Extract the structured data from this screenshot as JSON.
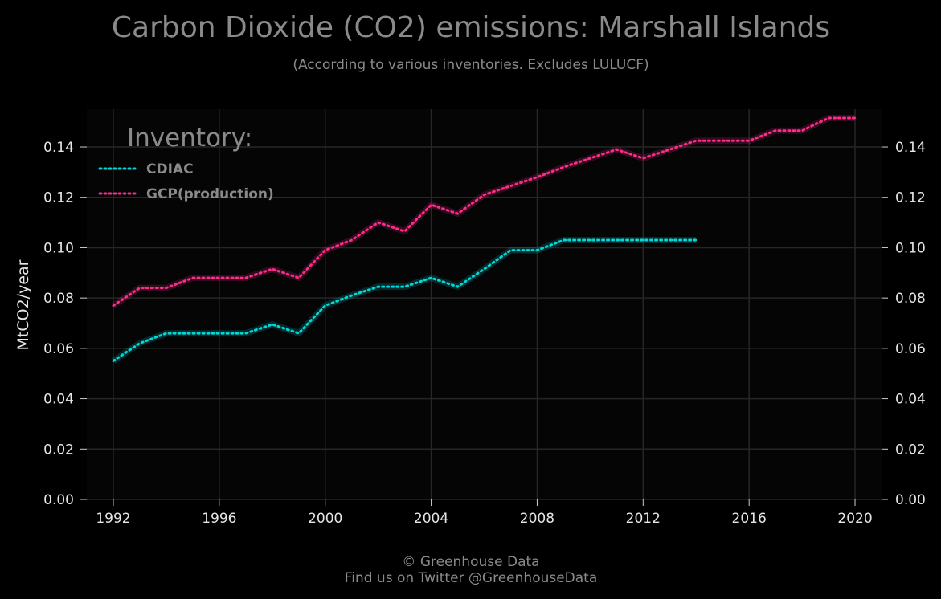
{
  "chart_data": {
    "type": "line",
    "title": "Carbon Dioxide (CO2) emissions: Marshall Islands",
    "subtitle": "(According to various inventories. Excludes LULUCF)",
    "ylabel": "MtCO2/year",
    "xlabel": "",
    "xlim": [
      1991,
      2021
    ],
    "ylim": [
      0,
      0.155
    ],
    "x_ticks": [
      "1992",
      "1996",
      "2000",
      "2004",
      "2008",
      "2012",
      "2016",
      "2020"
    ],
    "y_ticks": [
      "0.00",
      "0.02",
      "0.04",
      "0.06",
      "0.08",
      "0.10",
      "0.12",
      "0.14"
    ],
    "grid": true,
    "legend_title": "Inventory:",
    "legend_position": "top-left",
    "series": [
      {
        "name": "CDIAC",
        "color": "#00d8d8",
        "x": [
          1992,
          1993,
          1994,
          1995,
          1996,
          1997,
          1998,
          1999,
          2000,
          2001,
          2002,
          2003,
          2004,
          2005,
          2006,
          2007,
          2008,
          2009,
          2010,
          2011,
          2012,
          2013,
          2014
        ],
        "values": [
          0.055,
          0.062,
          0.066,
          0.066,
          0.066,
          0.066,
          0.0695,
          0.066,
          0.077,
          0.081,
          0.0845,
          0.0845,
          0.088,
          0.0845,
          0.0915,
          0.099,
          0.099,
          0.103,
          0.103,
          0.103,
          0.103,
          0.103,
          0.103
        ]
      },
      {
        "name": "GCP(production)",
        "color": "#ff2a8a",
        "x": [
          1992,
          1993,
          1994,
          1995,
          1996,
          1997,
          1998,
          1999,
          2000,
          2001,
          2002,
          2003,
          2004,
          2005,
          2006,
          2007,
          2008,
          2009,
          2010,
          2011,
          2012,
          2013,
          2014,
          2015,
          2016,
          2017,
          2018,
          2019,
          2020
        ],
        "values": [
          0.077,
          0.084,
          0.084,
          0.088,
          0.088,
          0.088,
          0.0915,
          0.088,
          0.099,
          0.103,
          0.11,
          0.1065,
          0.117,
          0.1135,
          0.121,
          0.1245,
          0.128,
          0.132,
          0.1355,
          0.139,
          0.1355,
          0.139,
          0.1425,
          0.1425,
          0.1425,
          0.1465,
          0.1465,
          0.1515,
          0.1515
        ]
      }
    ]
  },
  "footer": {
    "copyright": "© Greenhouse Data",
    "twitter": "Find us on Twitter @GreenhouseData"
  }
}
